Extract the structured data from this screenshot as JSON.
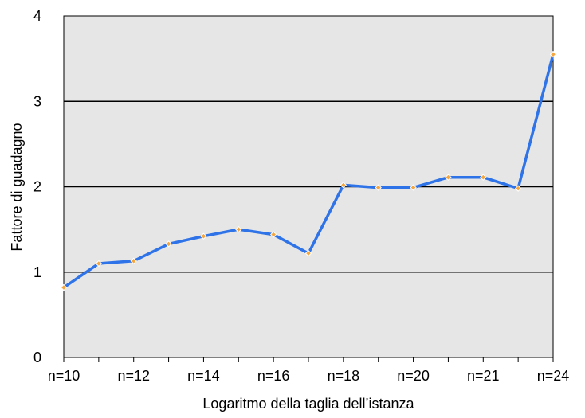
{
  "chart_data": {
    "type": "line",
    "title": "",
    "xlabel": "Logaritmo della taglia dell’istanza",
    "ylabel": "Fattore di guadagno",
    "ylim": [
      0,
      4
    ],
    "y_ticks": [
      "0",
      "1",
      "2",
      "3",
      "4"
    ],
    "x_tick_labels": [
      "n=10",
      "n=12",
      "n=14",
      "n=16",
      "n=18",
      "n=20",
      "n=21",
      "n=24"
    ],
    "grid": "horizontal",
    "colors": {
      "plot_background": "#e6e6e6",
      "line": "#2f73e8",
      "marker": "#f4a640",
      "gridline": "#000000"
    },
    "series": [
      {
        "values": [
          0.82,
          1.1,
          1.13,
          1.33,
          1.42,
          1.5,
          1.44,
          1.22,
          2.02,
          1.99,
          1.99,
          2.11,
          2.11,
          1.98,
          3.55
        ]
      }
    ]
  }
}
